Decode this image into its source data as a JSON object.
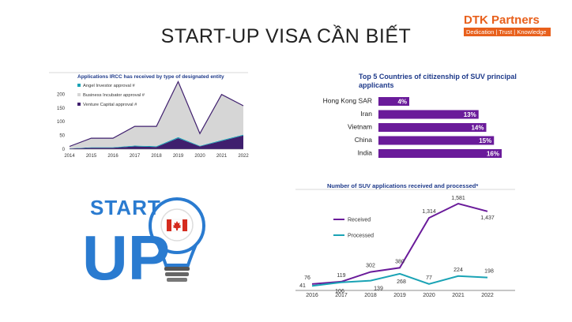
{
  "slide": {
    "title": "START-UP VISA CẦN BIẾT"
  },
  "logo": {
    "name": "DTK Partners",
    "tagline": "Dedication | Trust | Knowledge"
  },
  "colors": {
    "purple": "#6a1b9a",
    "teal": "#1aa3b5",
    "gray_area": "#d6d6d6",
    "orange": "#e8601c"
  },
  "illustration": {
    "text_top": "START",
    "text_bottom": "UP",
    "icon": "lightbulb-canada-flag-icon"
  },
  "chart_data": [
    {
      "type": "area",
      "title": "Applications IRCC has received by type of designated entity",
      "x": [
        2014,
        2015,
        2016,
        2017,
        2018,
        2019,
        2020,
        2021,
        2022
      ],
      "ylim": [
        0,
        250
      ],
      "yticks": [
        0,
        50,
        100,
        150,
        200
      ],
      "stacked": true,
      "series": [
        {
          "name": "Venture Capital approval #",
          "color": "#3f1f6e",
          "values": [
            2,
            5,
            5,
            10,
            8,
            40,
            10,
            30,
            50
          ]
        },
        {
          "name": "Angel Investor approval #",
          "color": "#1aa3b5",
          "values": [
            1,
            2,
            2,
            3,
            3,
            4,
            2,
            3,
            3
          ]
        },
        {
          "name": "Business Incubator approval #",
          "color": "#d6d6d6",
          "values": [
            7,
            33,
            33,
            70,
            72,
            202,
            45,
            166,
            105
          ]
        }
      ],
      "legend_position": "top-left"
    },
    {
      "type": "bar",
      "title": "Top 5 Countries of citizenship of SUV principal applicants",
      "categories": [
        "Hong Kong SAR",
        "Iran",
        "Vietnam",
        "China",
        "India"
      ],
      "values": [
        4,
        13,
        14,
        15,
        16
      ],
      "value_labels": [
        "4%",
        "13%",
        "14%",
        "15%",
        "16%"
      ],
      "color": "#6a1b9a",
      "orientation": "horizontal"
    },
    {
      "type": "line",
      "title": "Number of SUV applications received and processed*",
      "x": [
        "2016",
        "2017",
        "2018",
        "2019",
        "2020",
        "2021",
        "2022"
      ],
      "ylim": [
        0,
        1700
      ],
      "series": [
        {
          "name": "Received",
          "color": "#6a1b9a",
          "values": [
            76,
            119,
            302,
            380,
            1314,
            1581,
            1437
          ],
          "labels": [
            "76",
            "119",
            "302",
            "380",
            "1,314",
            "1,581",
            "1,437"
          ]
        },
        {
          "name": "Processed",
          "color": "#1aa3b5",
          "values": [
            41,
            106,
            139,
            268,
            77,
            224,
            198
          ],
          "labels": [
            "41",
            "106",
            "139",
            "268",
            "77",
            "224",
            "198"
          ]
        }
      ],
      "legend_position": "left"
    }
  ]
}
